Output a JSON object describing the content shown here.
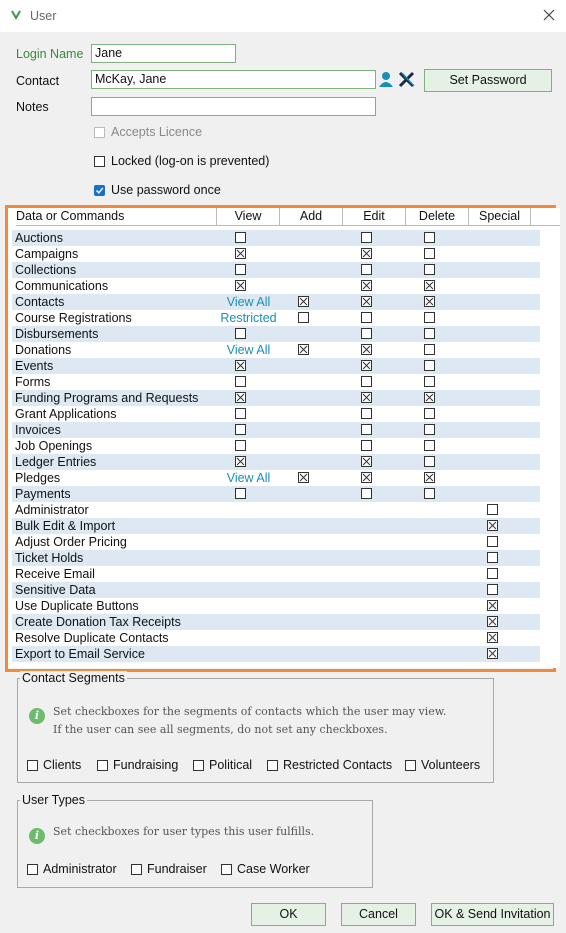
{
  "window": {
    "title": "User"
  },
  "form": {
    "login_name": {
      "label": "Login Name",
      "value": "Jane"
    },
    "contact": {
      "label": "Contact",
      "value": "McKay, Jane"
    },
    "set_password": "Set Password",
    "notes": {
      "label": "Notes"
    },
    "accepts_licence": {
      "label": "Accepts Licence",
      "checked": false,
      "disabled": true
    },
    "locked": {
      "label": "Locked (log-on is prevented)",
      "checked": false
    },
    "use_password_once": {
      "label": "Use password once",
      "checked": true
    }
  },
  "permissions": {
    "columns": [
      "Data or Commands",
      "View",
      "Add",
      "Edit",
      "Delete",
      "Special"
    ],
    "rows": [
      [
        "Auctions",
        false,
        null,
        false,
        false,
        null
      ],
      [
        "Campaigns",
        true,
        null,
        true,
        false,
        null
      ],
      [
        "Collections",
        false,
        null,
        false,
        false,
        null
      ],
      [
        "Communications",
        true,
        null,
        true,
        true,
        null
      ],
      [
        "Contacts",
        "View All",
        true,
        true,
        true,
        null
      ],
      [
        "Course Registrations",
        "Restricted",
        false,
        false,
        false,
        null
      ],
      [
        "Disbursements",
        false,
        null,
        false,
        false,
        null
      ],
      [
        "Donations",
        "View All",
        true,
        true,
        false,
        null
      ],
      [
        "Events",
        true,
        null,
        true,
        false,
        null
      ],
      [
        "Forms",
        false,
        null,
        false,
        false,
        null
      ],
      [
        "Funding Programs and Requests",
        true,
        null,
        true,
        true,
        null
      ],
      [
        "Grant Applications",
        false,
        null,
        false,
        false,
        null
      ],
      [
        "Invoices",
        false,
        null,
        false,
        false,
        null
      ],
      [
        "Job Openings",
        false,
        null,
        false,
        false,
        null
      ],
      [
        "Ledger Entries",
        true,
        null,
        true,
        false,
        null
      ],
      [
        "Pledges",
        "View All",
        true,
        true,
        true,
        null
      ],
      [
        "Payments",
        false,
        null,
        false,
        false,
        null
      ],
      [
        "Administrator",
        null,
        null,
        null,
        null,
        false
      ],
      [
        "Bulk Edit & Import",
        null,
        null,
        null,
        null,
        true
      ],
      [
        "Adjust Order Pricing",
        null,
        null,
        null,
        null,
        false
      ],
      [
        "Ticket Holds",
        null,
        null,
        null,
        null,
        false
      ],
      [
        "Receive Email",
        null,
        null,
        null,
        null,
        false
      ],
      [
        "Sensitive Data",
        null,
        null,
        null,
        null,
        false
      ],
      [
        "Use Duplicate Buttons",
        null,
        null,
        null,
        null,
        true
      ],
      [
        "Create Donation Tax Receipts",
        null,
        null,
        null,
        null,
        true
      ],
      [
        "Resolve Duplicate Contacts",
        null,
        null,
        null,
        null,
        true
      ],
      [
        "Export to Email Service",
        null,
        null,
        null,
        null,
        true
      ]
    ]
  },
  "contact_segments": {
    "title": "Contact Segments",
    "info": [
      "Set checkboxes for the segments of contacts which the user may view.",
      "If the user can see all segments, do not set any checkboxes."
    ],
    "options": [
      {
        "label": "Clients",
        "checked": false
      },
      {
        "label": "Fundraising",
        "checked": false
      },
      {
        "label": "Political",
        "checked": false
      },
      {
        "label": "Restricted Contacts",
        "checked": false
      },
      {
        "label": "Volunteers",
        "checked": false
      }
    ]
  },
  "user_types": {
    "title": "User Types",
    "info": [
      "Set checkboxes for user types this user fulfills."
    ],
    "options": [
      {
        "label": "Administrator",
        "checked": false
      },
      {
        "label": "Fundraiser",
        "checked": false
      },
      {
        "label": "Case Worker",
        "checked": false
      }
    ]
  },
  "buttons": [
    "OK",
    "Cancel",
    "OK & Send Invitation"
  ]
}
